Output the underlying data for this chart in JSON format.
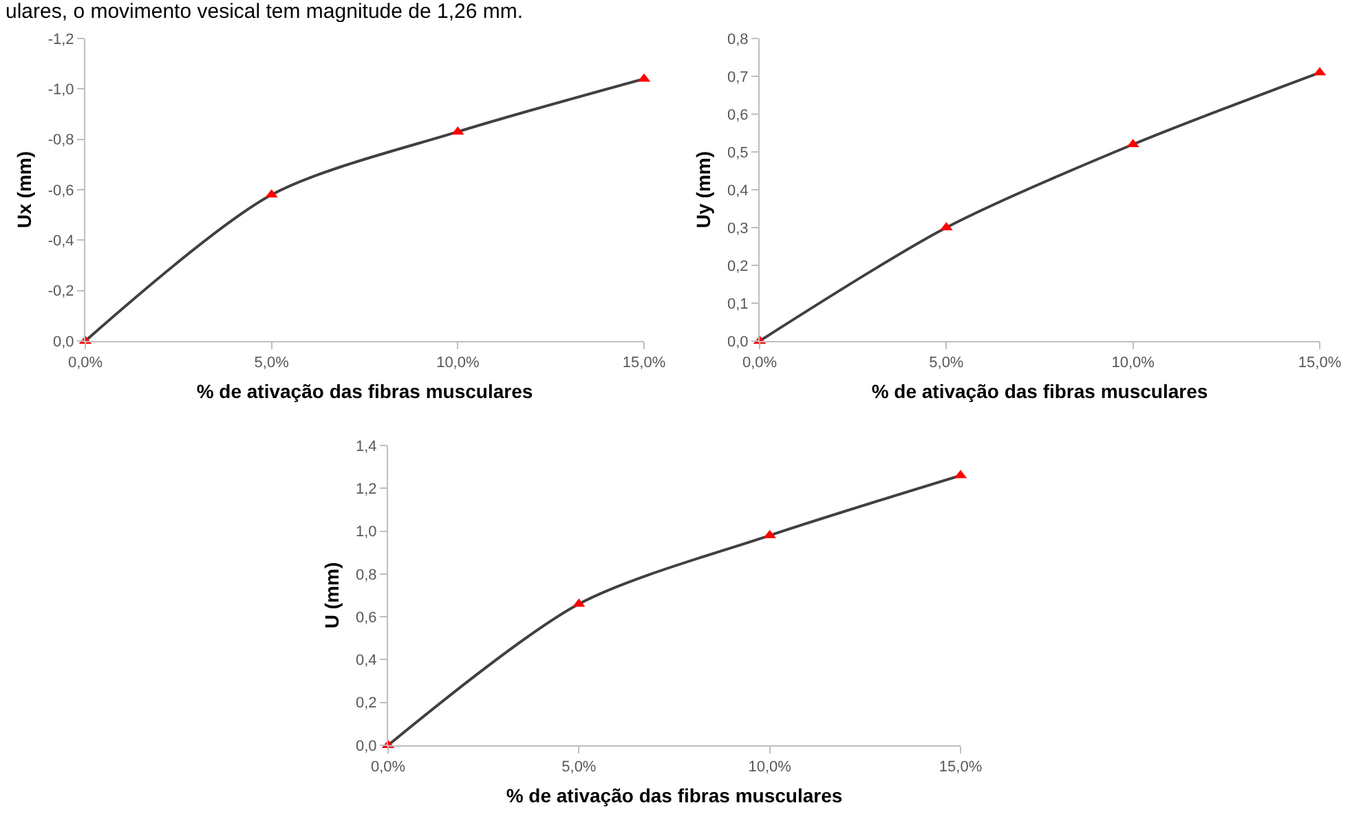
{
  "chart_data": [
    {
      "type": "line",
      "annotations": [
        "ulares, o movimento vesical tem magnitude de 1,26 mm."
      ],
      "xlabel": "% de ativação das fibras musculares",
      "ylabel": "Ux (mm)",
      "x": [
        0,
        5,
        10,
        15
      ],
      "series": [
        {
          "color": "#404040",
          "colors": [
            "#ff0000",
            "#ff0000",
            "#ff0000",
            "#ff0000"
          ],
          "values": [
            0,
            -0.58,
            -0.83,
            -1.04
          ]
        }
      ],
      "marker": "triangle",
      "xlim": [
        0,
        15
      ],
      "xticks": [
        {
          "value": 0,
          "label": "0,0%"
        },
        {
          "value": 5,
          "label": "5,0%"
        },
        {
          "value": 10,
          "label": "10,0%"
        },
        {
          "value": 15,
          "label": "15,0%"
        }
      ],
      "ylim": [
        0,
        -1.2
      ],
      "yticks": [
        {
          "value": 0,
          "label": "0,0"
        },
        {
          "value": -0.2,
          "label": "-0,2"
        },
        {
          "value": -0.4,
          "label": "-0,4"
        },
        {
          "value": -0.6,
          "label": "-0,6"
        },
        {
          "value": -0.8,
          "label": "-0,8"
        },
        {
          "value": -1.0,
          "label": "-1,0"
        },
        {
          "value": -1.2,
          "label": "-1,2"
        }
      ],
      "grid": false
    },
    {
      "type": "line",
      "xlabel": "% de ativação das fibras musculares",
      "ylabel": "Uy (mm)",
      "x": [
        0,
        5,
        10,
        15
      ],
      "series": [
        {
          "color": "#404040",
          "colors": [
            "#ff0000",
            "#ff0000",
            "#ff0000",
            "#ff0000"
          ],
          "values": [
            0,
            0.3,
            0.52,
            0.71
          ]
        }
      ],
      "marker": "triangle",
      "xlim": [
        0,
        15
      ],
      "xticks": [
        {
          "value": 0,
          "label": "0,0%"
        },
        {
          "value": 5,
          "label": "5,0%"
        },
        {
          "value": 10,
          "label": "10,0%"
        },
        {
          "value": 15,
          "label": "15,0%"
        }
      ],
      "ylim": [
        0,
        0.8
      ],
      "yticks": [
        {
          "value": 0,
          "label": "0,0"
        },
        {
          "value": 0.1,
          "label": "0,1"
        },
        {
          "value": 0.2,
          "label": "0,2"
        },
        {
          "value": 0.3,
          "label": "0,3"
        },
        {
          "value": 0.4,
          "label": "0,4"
        },
        {
          "value": 0.5,
          "label": "0,5"
        },
        {
          "value": 0.6,
          "label": "0,6"
        },
        {
          "value": 0.7,
          "label": "0,7"
        },
        {
          "value": 0.8,
          "label": "0,8"
        }
      ],
      "grid": false
    },
    {
      "type": "line",
      "xlabel": "% de ativação das fibras musculares",
      "ylabel": "U (mm)",
      "x": [
        0,
        5,
        10,
        15
      ],
      "series": [
        {
          "color": "#404040",
          "colors": [
            "#ff0000",
            "#ff0000",
            "#ff0000",
            "#ff0000"
          ],
          "values": [
            0,
            0.66,
            0.98,
            1.26
          ]
        }
      ],
      "marker": "triangle",
      "xlim": [
        0,
        15
      ],
      "xticks": [
        {
          "value": 0,
          "label": "0,0%"
        },
        {
          "value": 5,
          "label": "5,0%"
        },
        {
          "value": 10,
          "label": "10,0%"
        },
        {
          "value": 15,
          "label": "15,0%"
        }
      ],
      "ylim": [
        0,
        1.4
      ],
      "yticks": [
        {
          "value": 0,
          "label": "0,0"
        },
        {
          "value": 0.2,
          "label": "0,2"
        },
        {
          "value": 0.4,
          "label": "0,4"
        },
        {
          "value": 0.6,
          "label": "0,6"
        },
        {
          "value": 0.8,
          "label": "0,8"
        },
        {
          "value": 1.0,
          "label": "1,0"
        },
        {
          "value": 1.2,
          "label": "1,2"
        },
        {
          "value": 1.4,
          "label": "1,4"
        }
      ],
      "grid": false
    }
  ]
}
